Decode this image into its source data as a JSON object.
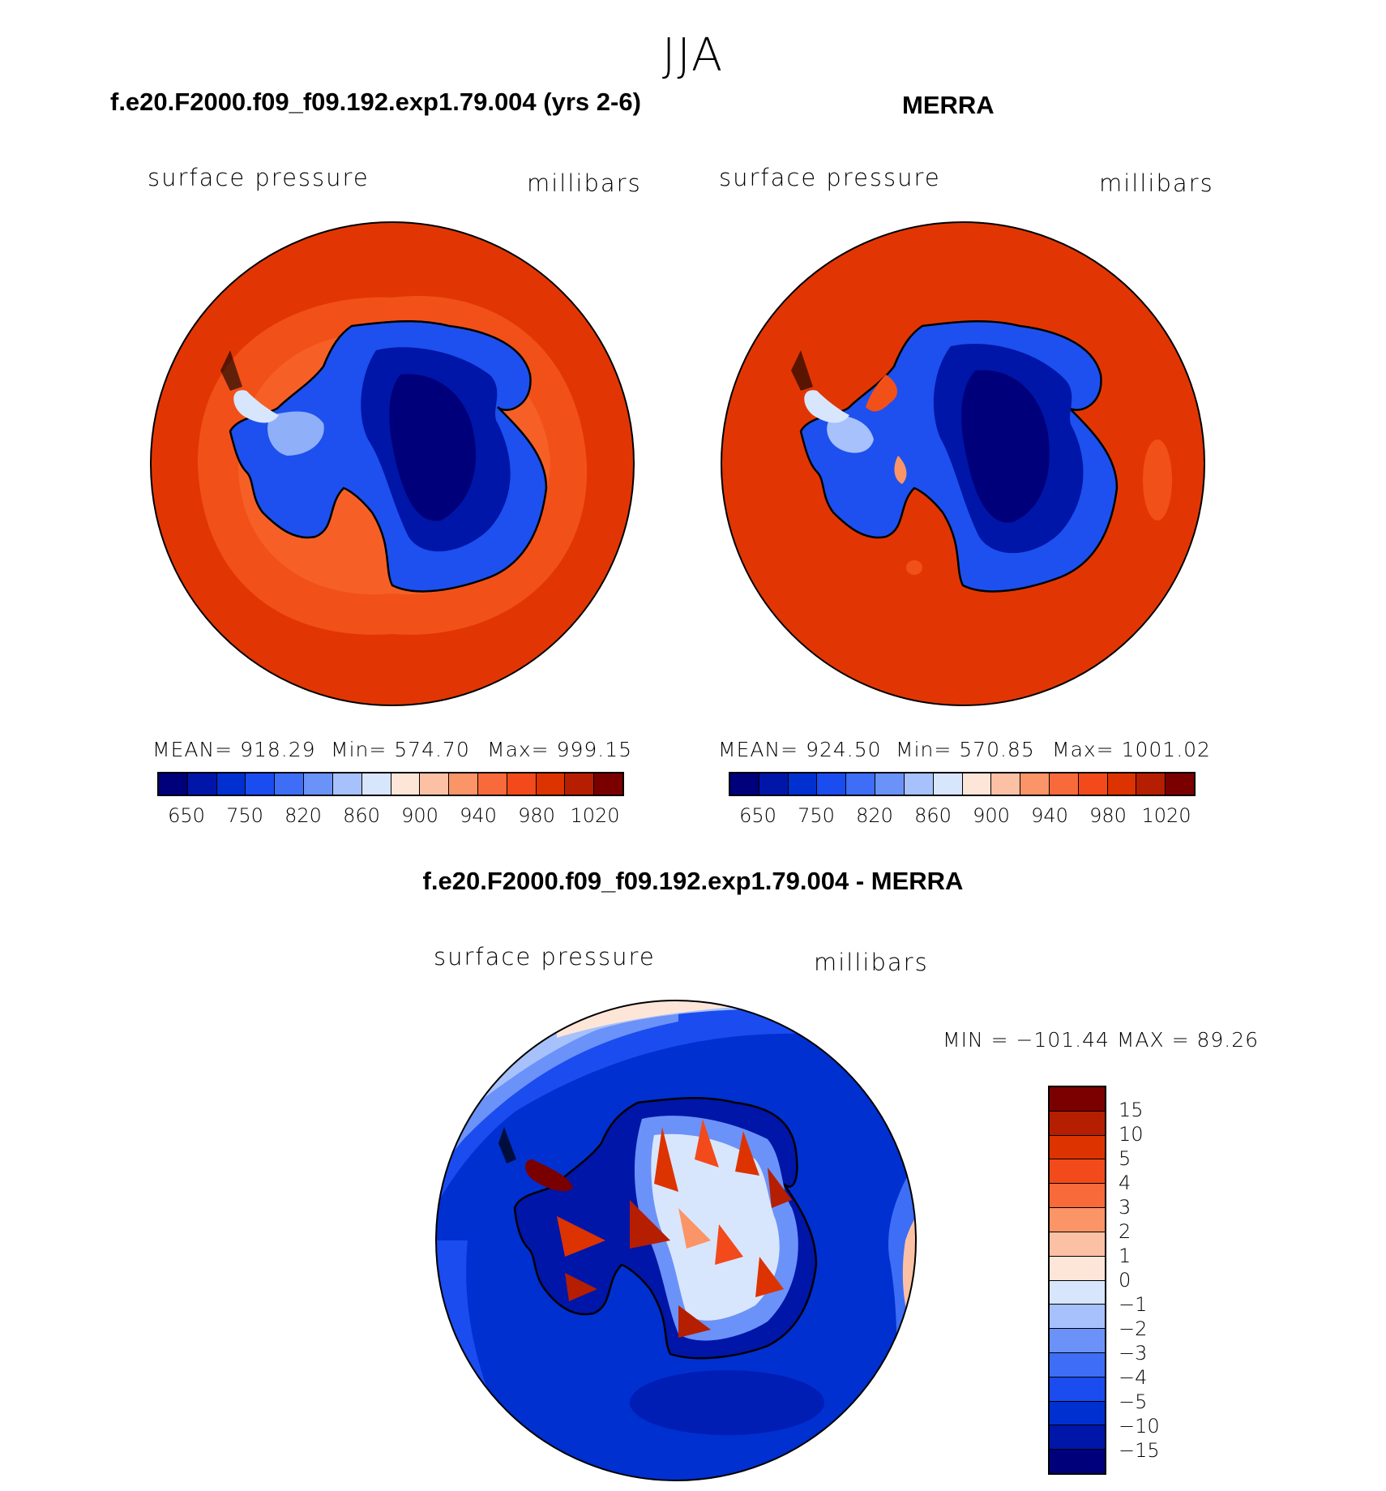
{
  "header": {
    "season": "JJA",
    "model_title": "f.e20.F2000.f09_f09.192.exp1.79.004 (yrs 2-6)",
    "obs_title": "MERRA",
    "diff_title": "f.e20.F2000.f09_f09.192.exp1.79.004 - MERRA"
  },
  "panels": {
    "model": {
      "variable": "surface pressure",
      "units": "millibars",
      "mean": "MEAN= 918.29",
      "min": "Min= 574.70",
      "max": "Max= 999.15"
    },
    "obs": {
      "variable": "surface pressure",
      "units": "millibars",
      "mean": "MEAN= 924.50",
      "min": "Min= 570.85",
      "max": "Max= 1001.02"
    },
    "diff": {
      "variable": "surface pressure",
      "units": "millibars",
      "minmax": "MIN = −101.44 MAX =   89.26"
    }
  },
  "colors": {
    "abs_scale": [
      "#00007a",
      "#0016a8",
      "#0030d0",
      "#1a4cf0",
      "#3d6ef5",
      "#6b92f8",
      "#a6c1fb",
      "#d8e6fd",
      "#fde6d8",
      "#fcc1a4",
      "#fb9466",
      "#f86a3a",
      "#f24a1b",
      "#dd3300",
      "#b51e00",
      "#7a0000"
    ],
    "diff_scale": [
      "#7a0000",
      "#b51e00",
      "#dd3300",
      "#f24a1b",
      "#f86a3a",
      "#fb9466",
      "#fcc1a4",
      "#fde6d8",
      "#d8e6fd",
      "#a6c1fb",
      "#6b92f8",
      "#3d6ef5",
      "#1a4cf0",
      "#0030d0",
      "#0016a8",
      "#00007a"
    ]
  },
  "chart_data": [
    {
      "type": "heatmap",
      "title": "f.e20.F2000.f09_f09.192.exp1.79.004 (yrs 2-6)",
      "variable": "surface pressure",
      "units": "millibars",
      "projection": "south polar stereographic",
      "stats": {
        "mean": 918.29,
        "min": 574.7,
        "max": 999.15
      },
      "colorbar_labels": [
        "650",
        "750",
        "820",
        "860",
        "900",
        "940",
        "980",
        "1020"
      ]
    },
    {
      "type": "heatmap",
      "title": "MERRA",
      "variable": "surface pressure",
      "units": "millibars",
      "projection": "south polar stereographic",
      "stats": {
        "mean": 924.5,
        "min": 570.85,
        "max": 1001.02
      },
      "colorbar_labels": [
        "650",
        "750",
        "820",
        "860",
        "900",
        "940",
        "980",
        "1020"
      ]
    },
    {
      "type": "heatmap",
      "title": "f.e20.F2000.f09_f09.192.exp1.79.004 - MERRA",
      "variable": "surface pressure",
      "units": "millibars",
      "projection": "south polar stereographic",
      "stats": {
        "min": -101.44,
        "max": 89.26
      },
      "colorbar_labels": [
        "15",
        "10",
        "5",
        "4",
        "3",
        "2",
        "1",
        "0",
        "−1",
        "−2",
        "−3",
        "−4",
        "−5",
        "−10",
        "−15"
      ]
    }
  ]
}
